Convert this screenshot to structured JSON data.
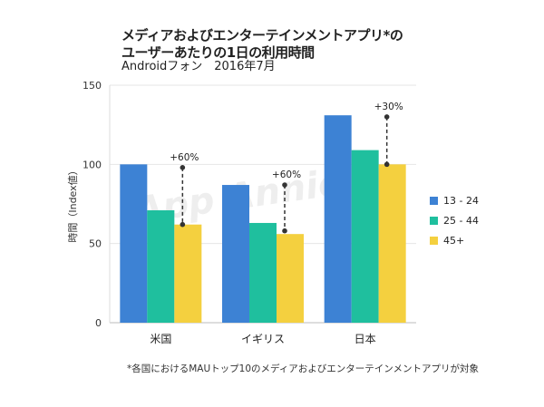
{
  "title": {
    "line1": "メディアおよびエンターテインメントアプリ*の",
    "line2": "ユーザーあたりの1日の利用時間"
  },
  "subtitle": "Androidフォン　2016年7月",
  "watermark": "App Annie",
  "footnote": "*各国におけるMAUトップ10のメディアおよびエンターテインメントアプリが対象",
  "chart_data": {
    "type": "bar",
    "categories": [
      "米国",
      "イギリス",
      "日本"
    ],
    "series": [
      {
        "name": "13 - 24",
        "color": "#3d82d4",
        "values": [
          100,
          87,
          131
        ]
      },
      {
        "name": "25 - 44",
        "color": "#1fbf9e",
        "values": [
          71,
          63,
          109
        ]
      },
      {
        "name": "45+",
        "color": "#f4d03f",
        "values": [
          62,
          56,
          100
        ]
      }
    ],
    "ylabel": "時間（Index値）",
    "ylim": [
      0,
      150
    ],
    "yticks": [
      0,
      50,
      100,
      150
    ],
    "grid": true,
    "legend": "right",
    "annotations": [
      {
        "category": "米国",
        "text": "+60%",
        "from": 62,
        "to": 98
      },
      {
        "category": "イギリス",
        "text": "+60%",
        "from": 58,
        "to": 87
      },
      {
        "category": "日本",
        "text": "+30%",
        "from": 100,
        "to": 130
      }
    ]
  }
}
